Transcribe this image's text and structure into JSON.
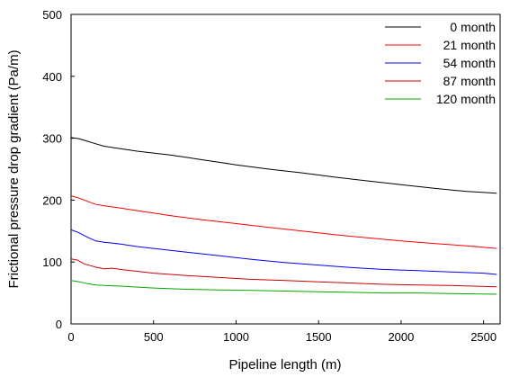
{
  "chart_data": {
    "type": "line",
    "xlabel": "Pipeline length (m)",
    "ylabel": "Frictional pressure drop gradient (Pa/m)",
    "xlim": [
      0,
      2600
    ],
    "ylim": [
      0,
      500
    ],
    "xticks": [
      0,
      500,
      1000,
      1500,
      2000,
      2500
    ],
    "yticks": [
      0,
      100,
      200,
      300,
      400,
      500
    ],
    "grid": false,
    "legend_position": "top-right",
    "series": [
      {
        "name": "0 month",
        "color": "#000000",
        "x": [
          0,
          50,
          100,
          150,
          200,
          300,
          400,
          500,
          600,
          700,
          800,
          900,
          1000,
          1200,
          1400,
          1600,
          1800,
          2000,
          2200,
          2400,
          2580
        ],
        "y": [
          301,
          299,
          295,
          291,
          287,
          283,
          279,
          276,
          273,
          269,
          265,
          261,
          257,
          250,
          244,
          237,
          231,
          225,
          219,
          214,
          211
        ]
      },
      {
        "name": "21 month",
        "color": "#ff0000",
        "x": [
          0,
          50,
          100,
          150,
          200,
          300,
          400,
          500,
          600,
          800,
          1000,
          1200,
          1400,
          1600,
          1800,
          2000,
          2200,
          2400,
          2580
        ],
        "y": [
          207,
          203,
          198,
          193,
          191,
          187,
          183,
          179,
          175,
          168,
          162,
          156,
          150,
          144,
          139,
          134,
          130,
          126,
          122
        ]
      },
      {
        "name": "54 month",
        "color": "#0000ff",
        "x": [
          0,
          50,
          100,
          150,
          200,
          300,
          400,
          500,
          700,
          900,
          1100,
          1300,
          1500,
          1700,
          1900,
          2100,
          2300,
          2500,
          2580
        ],
        "y": [
          152,
          147,
          140,
          134,
          132,
          129,
          125,
          122,
          116,
          110,
          104,
          99,
          95,
          91,
          88,
          86,
          84,
          82,
          80
        ]
      },
      {
        "name": "87 month",
        "color": "#cc0000",
        "x": [
          0,
          40,
          80,
          120,
          160,
          200,
          250,
          300,
          400,
          500,
          700,
          900,
          1100,
          1300,
          1500,
          1700,
          1900,
          2100,
          2300,
          2580
        ],
        "y": [
          105,
          103,
          97,
          94,
          91,
          89,
          90,
          88,
          85,
          82,
          78,
          75,
          72,
          70,
          68,
          66,
          64,
          63,
          62,
          60
        ]
      },
      {
        "name": "120 month",
        "color": "#00aa00",
        "x": [
          0,
          50,
          100,
          150,
          200,
          300,
          500,
          700,
          900,
          1100,
          1300,
          1500,
          1700,
          1900,
          2100,
          2300,
          2580
        ],
        "y": [
          70,
          68,
          65,
          63,
          62,
          61,
          58,
          56,
          55,
          54,
          53,
          52,
          51,
          50,
          50,
          49,
          48
        ]
      }
    ]
  }
}
